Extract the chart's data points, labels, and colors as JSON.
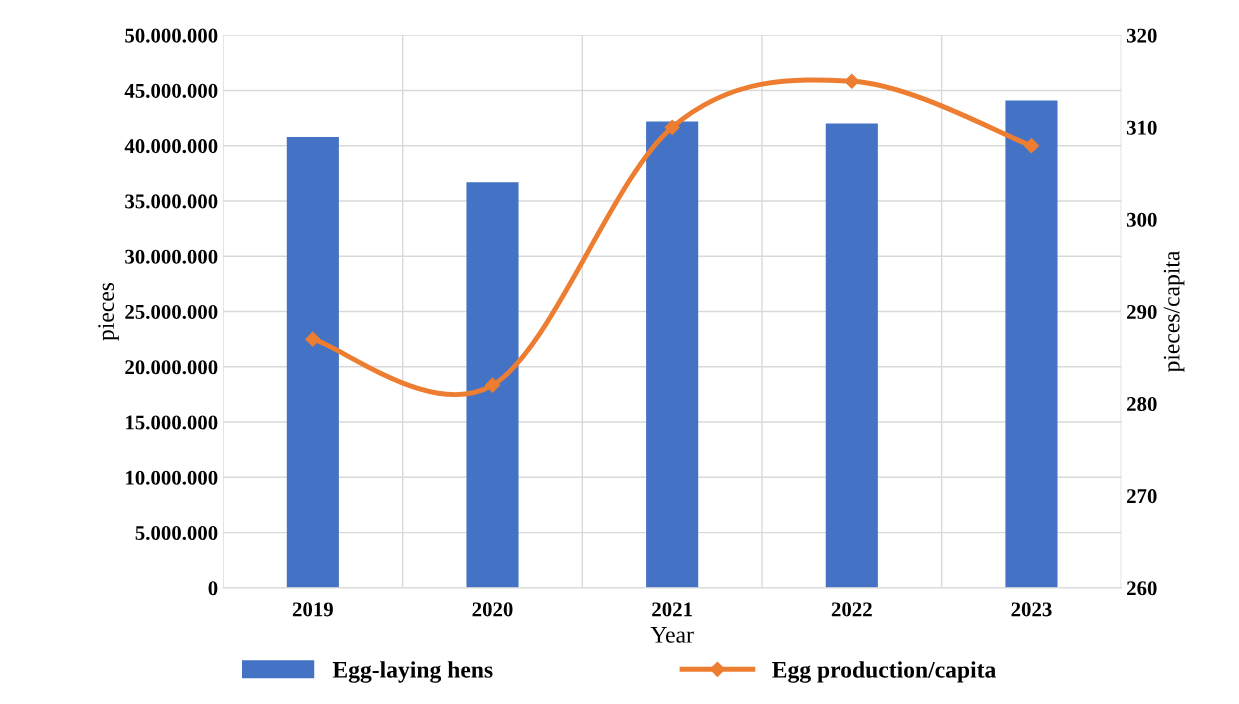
{
  "chart_data": {
    "type": "bar",
    "xlabel": "Year",
    "ylabel": "pieces",
    "y2label": "pieces/capita",
    "categories": [
      "2019",
      "2020",
      "2021",
      "2022",
      "2023"
    ],
    "series": [
      {
        "name": "Egg-laying hens",
        "color": "#4472c4",
        "values": [
          40800000,
          36700000,
          42200000,
          42000000,
          44100000
        ]
      },
      {
        "name": "Egg production/capita",
        "type": "line",
        "axis": "y2",
        "color": "#ed7d31",
        "marker": "diamond",
        "values": [
          287,
          282,
          310,
          315,
          308
        ]
      }
    ],
    "ylim": [
      0,
      50000000
    ],
    "yticks": [
      0,
      {
        "value": 5000000,
        "label": "5.000.000"
      },
      {
        "value": 10000000,
        "label": "10.000.000"
      },
      {
        "value": 15000000,
        "label": "15.000.000"
      },
      {
        "value": 20000000,
        "label": "20.000.000"
      },
      {
        "value": 25000000,
        "label": "25.000.000"
      },
      {
        "value": 30000000,
        "label": "30.000.000"
      },
      {
        "value": 35000000,
        "label": "35.000.000"
      },
      {
        "value": 40000000,
        "label": "40.000.000"
      },
      {
        "value": 45000000,
        "label": "45.000.000"
      },
      {
        "value": 50000000,
        "label": "50.000.000"
      }
    ],
    "y2lim": [
      260,
      320
    ],
    "y2ticks": [
      260,
      270,
      280,
      290,
      300,
      310,
      320
    ],
    "grid": true,
    "legend": "bottom"
  }
}
